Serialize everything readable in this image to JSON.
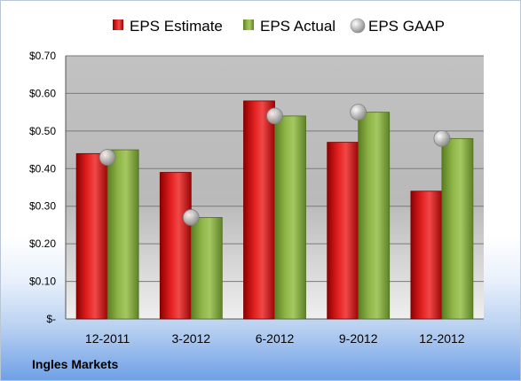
{
  "company": "Ingles Markets",
  "colors": {
    "estimate": "#e01010",
    "actual": "#7fa63a",
    "gaap": "#c8c8c8"
  },
  "chart_data": {
    "type": "bar",
    "title": "",
    "xlabel": "",
    "ylabel": "",
    "categories": [
      "12-2011",
      "3-2012",
      "6-2012",
      "9-2012",
      "12-2012"
    ],
    "series": [
      {
        "name": "EPS Estimate",
        "type": "bar",
        "values": [
          0.44,
          0.39,
          0.58,
          0.47,
          0.34
        ]
      },
      {
        "name": "EPS Actual",
        "type": "bar",
        "values": [
          0.45,
          0.27,
          0.54,
          0.55,
          0.48
        ]
      },
      {
        "name": "EPS GAAP",
        "type": "marker",
        "values": [
          0.43,
          0.27,
          0.54,
          0.55,
          0.48
        ]
      }
    ],
    "ylim": [
      0,
      0.7
    ],
    "yticks": [
      0,
      0.1,
      0.2,
      0.3,
      0.4,
      0.5,
      0.6,
      0.7
    ],
    "ytick_labels": [
      "$-",
      "$0.10",
      "$0.20",
      "$0.30",
      "$0.40",
      "$0.50",
      "$0.60",
      "$0.70"
    ],
    "grid": true,
    "legend_position": "top"
  }
}
